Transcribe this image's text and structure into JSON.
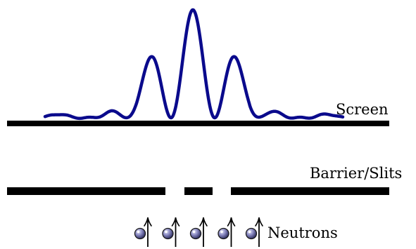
{
  "labels": {
    "screen": "Screen",
    "barrier": "Barrier/Slits",
    "neutrons": "Neutrons"
  },
  "colors": {
    "curve": "#0a0a8c",
    "line": "#000000",
    "particle_light": "#e4e4f6",
    "particle_mid": "#8c8cc4",
    "particle_dark": "#2c2c5e"
  },
  "diagram": {
    "pattern": "double-slit interference: central maximum with two smaller side maxima",
    "barrier_slits": 2,
    "neutron_count": 5,
    "neutron_icon": "neutron-with-up-arrow-icon"
  }
}
